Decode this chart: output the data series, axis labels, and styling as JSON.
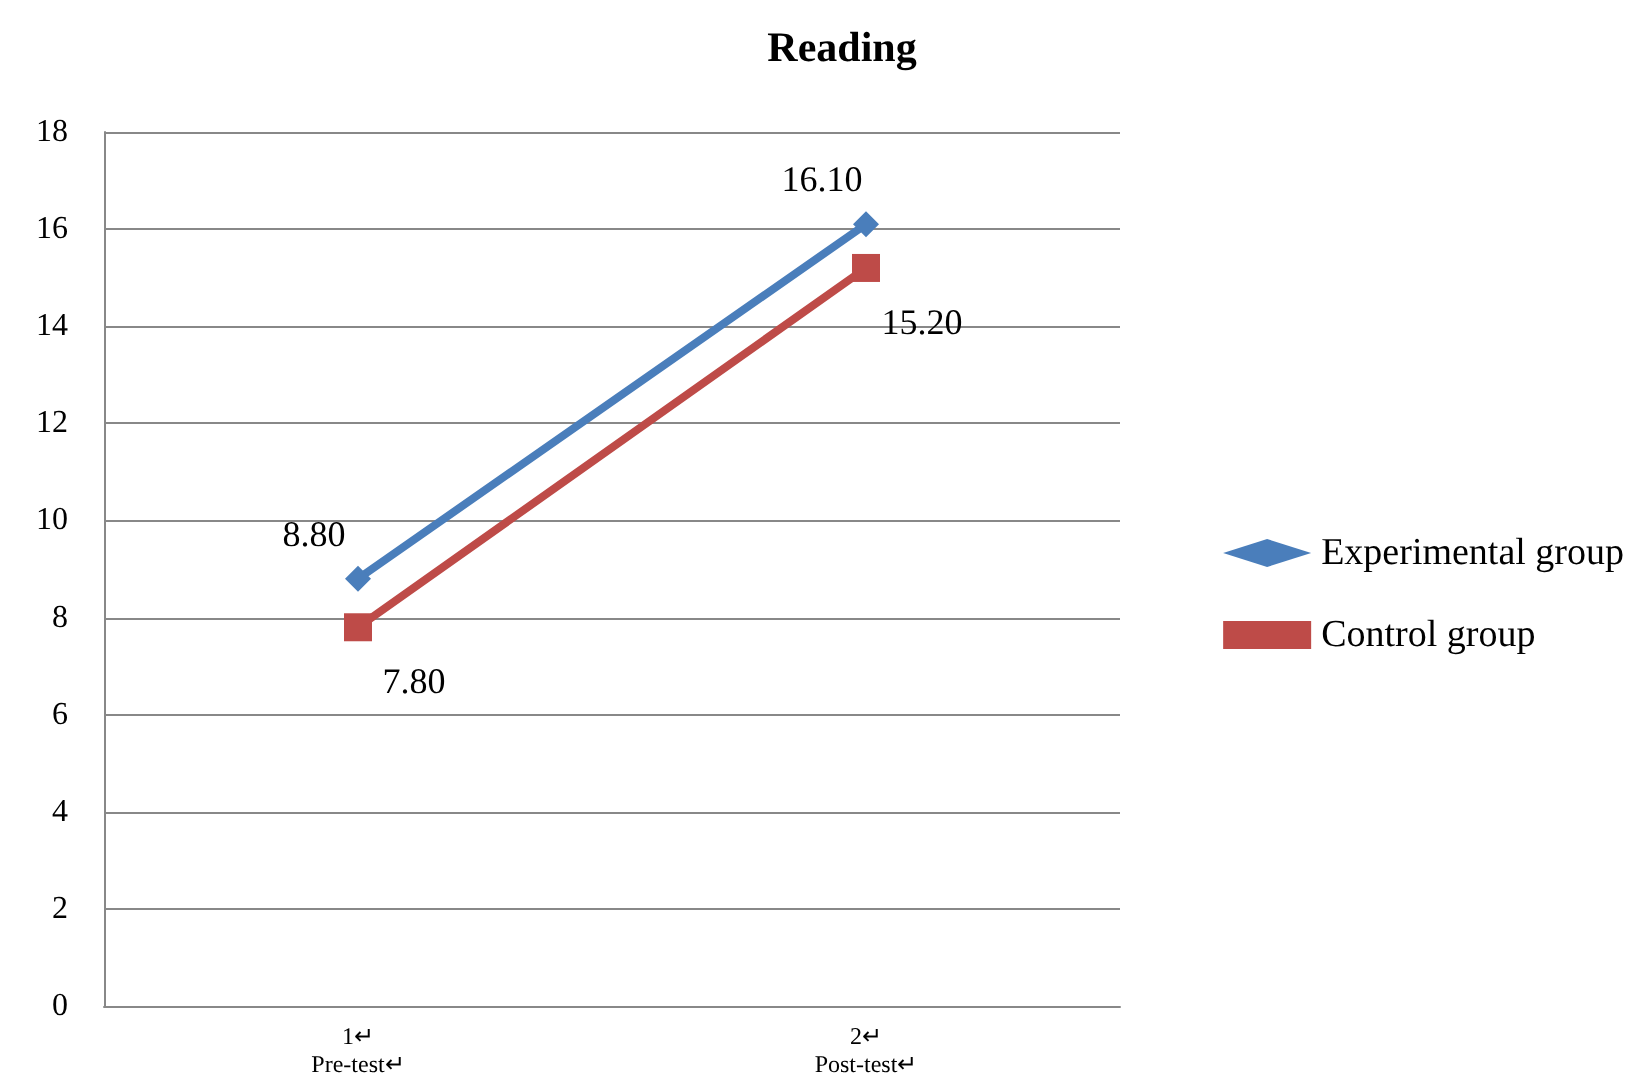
{
  "chart_data": {
    "type": "line",
    "title": "Reading",
    "categories": [
      "1↵\nPre-test↵",
      "2↵\nPost-test↵"
    ],
    "series": [
      {
        "name": "Experimental group",
        "color": "#4a7ebb",
        "values": [
          8.8,
          16.1
        ],
        "value_labels": [
          "8.80",
          "16.10"
        ],
        "marker": "diamond"
      },
      {
        "name": "Control group",
        "color": "#be4b48",
        "values": [
          7.8,
          15.2
        ],
        "value_labels": [
          "7.80",
          "15.20"
        ],
        "marker": "square"
      }
    ],
    "ylim": [
      0,
      18
    ],
    "yticks": [
      0,
      2,
      4,
      6,
      8,
      10,
      12,
      14,
      16,
      18
    ],
    "grid": "y",
    "legend": "right",
    "line_style": "solid"
  }
}
